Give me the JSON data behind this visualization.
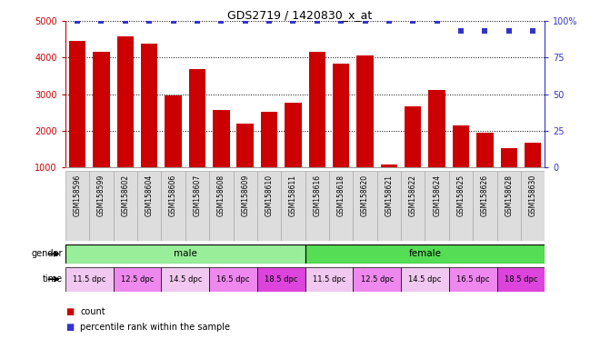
{
  "title": "GDS2719 / 1420830_x_at",
  "samples": [
    "GSM158596",
    "GSM158599",
    "GSM158602",
    "GSM158604",
    "GSM158606",
    "GSM158607",
    "GSM158608",
    "GSM158609",
    "GSM158610",
    "GSM158611",
    "GSM158616",
    "GSM158618",
    "GSM158620",
    "GSM158621",
    "GSM158622",
    "GSM158624",
    "GSM158625",
    "GSM158626",
    "GSM158628",
    "GSM158630"
  ],
  "counts": [
    4460,
    4150,
    4580,
    4380,
    2960,
    3680,
    2580,
    2200,
    2520,
    2780,
    4150,
    3830,
    4050,
    1080,
    2680,
    3120,
    2160,
    1960,
    1540,
    1680
  ],
  "percentile": [
    100,
    100,
    100,
    100,
    100,
    100,
    100,
    100,
    100,
    100,
    100,
    100,
    100,
    100,
    100,
    100,
    93,
    93,
    93,
    93
  ],
  "bar_color": "#cc0000",
  "dot_color": "#3333cc",
  "ylim_left": [
    1000,
    5000
  ],
  "ylim_right": [
    0,
    100
  ],
  "yticks_left": [
    1000,
    2000,
    3000,
    4000,
    5000
  ],
  "yticks_right": [
    0,
    25,
    50,
    75,
    100
  ],
  "gender_groups": [
    {
      "label": "male",
      "start": 0,
      "end": 10,
      "color": "#99ee99"
    },
    {
      "label": "female",
      "start": 10,
      "end": 20,
      "color": "#55dd55"
    }
  ],
  "time_groups": [
    {
      "label": "11.5 dpc",
      "start": 0,
      "end": 2,
      "color": "#f0c8f0"
    },
    {
      "label": "12.5 dpc",
      "start": 2,
      "end": 4,
      "color": "#ee88ee"
    },
    {
      "label": "14.5 dpc",
      "start": 4,
      "end": 6,
      "color": "#f0c8f0"
    },
    {
      "label": "16.5 dpc",
      "start": 6,
      "end": 8,
      "color": "#ee88ee"
    },
    {
      "label": "18.5 dpc",
      "start": 8,
      "end": 10,
      "color": "#dd44dd"
    },
    {
      "label": "11.5 dpc",
      "start": 10,
      "end": 12,
      "color": "#f0c8f0"
    },
    {
      "label": "12.5 dpc",
      "start": 12,
      "end": 14,
      "color": "#ee88ee"
    },
    {
      "label": "14.5 dpc",
      "start": 14,
      "end": 16,
      "color": "#f0c8f0"
    },
    {
      "label": "16.5 dpc",
      "start": 16,
      "end": 18,
      "color": "#ee88ee"
    },
    {
      "label": "18.5 dpc",
      "start": 18,
      "end": 20,
      "color": "#dd44dd"
    }
  ],
  "xlabel_bg": "#dddddd",
  "fig_w": 6.6,
  "fig_h": 3.84,
  "dpi": 100
}
